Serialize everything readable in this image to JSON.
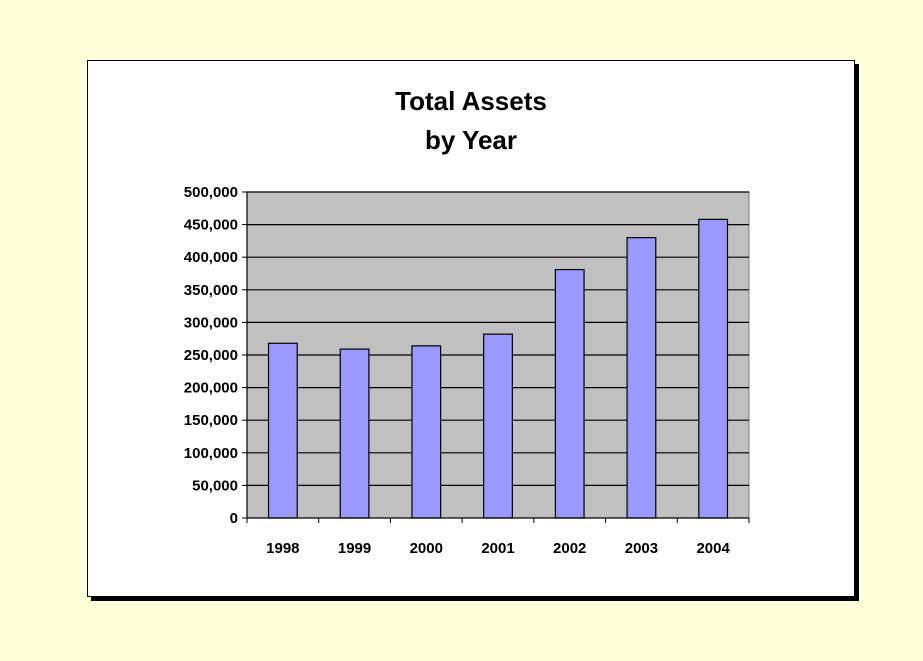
{
  "colors": {
    "page_background": "#ffffd9",
    "chart_background": "#ffffff",
    "plot_area": "#c0c0c0",
    "bar_fill": "#9999ff",
    "bar_stroke": "#000000"
  },
  "chart_data": {
    "type": "bar",
    "title_line1": "Total Assets",
    "title_line2": "by Year",
    "xlabel": "",
    "ylabel": "",
    "categories": [
      "1998",
      "1999",
      "2000",
      "2001",
      "2002",
      "2003",
      "2004"
    ],
    "values": [
      268000,
      259000,
      264000,
      282000,
      381000,
      430000,
      458000
    ],
    "ylim": [
      0,
      500000
    ],
    "ytick_step": 50000,
    "ytick_labels": [
      "0",
      "50,000",
      "100,000",
      "150,000",
      "200,000",
      "250,000",
      "300,000",
      "350,000",
      "400,000",
      "450,000",
      "500,000"
    ],
    "grid": true,
    "legend": "none"
  }
}
